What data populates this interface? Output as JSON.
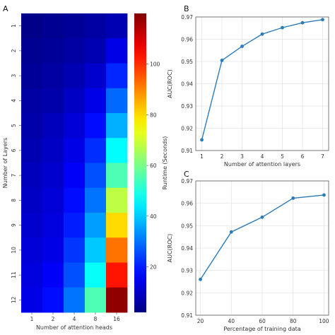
{
  "colors": {
    "line": "#2b7bb9",
    "grid": "#e2e2e2",
    "axis": "#444444"
  },
  "chart_data": [
    {
      "panel": "A",
      "type": "heatmap",
      "xlabel": "Number of attention heads",
      "ylabel": "Number of Layers",
      "x_categories": [
        "1",
        "2",
        "4",
        "8",
        "16"
      ],
      "y_categories": [
        "1",
        "2",
        "3",
        "4",
        "5",
        "6",
        "7",
        "8",
        "9",
        "10",
        "11",
        "12"
      ],
      "values": [
        [
          3,
          4,
          5,
          6,
          8
        ],
        [
          4,
          5,
          6,
          8,
          14
        ],
        [
          5,
          6,
          8,
          11,
          21
        ],
        [
          6,
          7,
          10,
          14,
          29
        ],
        [
          7,
          9,
          12,
          18,
          37
        ],
        [
          8,
          10,
          14,
          22,
          46
        ],
        [
          9,
          11,
          16,
          26,
          55
        ],
        [
          10,
          12,
          18,
          30,
          68
        ],
        [
          11,
          13,
          20,
          35,
          80
        ],
        [
          12,
          14,
          23,
          40,
          92
        ],
        [
          13,
          16,
          26,
          47,
          103
        ],
        [
          14,
          18,
          30,
          55,
          118
        ]
      ],
      "colorbar": {
        "label": "Runtime (Seconds)",
        "min": 2,
        "max": 120,
        "ticks": [
          20,
          40,
          60,
          80,
          100
        ],
        "colormap": "jet"
      }
    },
    {
      "panel": "B",
      "type": "line",
      "xlabel": "Number of attention layers",
      "ylabel": "AUC(ROC)",
      "x": [
        1,
        2,
        3,
        4,
        5,
        6,
        7
      ],
      "y": [
        0.9148,
        0.9505,
        0.9568,
        0.9623,
        0.9652,
        0.9674,
        0.9688
      ],
      "xlim": [
        0.7,
        7.3
      ],
      "ylim": [
        0.91,
        0.97
      ],
      "xticks": [
        1,
        2,
        3,
        4,
        5,
        6,
        7
      ],
      "yticks": [
        0.91,
        0.92,
        0.93,
        0.94,
        0.95,
        0.96,
        0.97
      ],
      "grid": true
    },
    {
      "panel": "C",
      "type": "line",
      "xlabel": "Percentage of training data",
      "ylabel": "AUC(ROC)",
      "x": [
        20,
        40,
        60,
        80,
        100
      ],
      "y": [
        0.926,
        0.9472,
        0.9538,
        0.9623,
        0.9637
      ],
      "xlim": [
        17,
        103
      ],
      "ylim": [
        0.91,
        0.97
      ],
      "xticks": [
        20,
        40,
        60,
        80,
        100
      ],
      "yticks": [
        0.91,
        0.92,
        0.93,
        0.94,
        0.95,
        0.96,
        0.97
      ],
      "grid": true
    }
  ]
}
